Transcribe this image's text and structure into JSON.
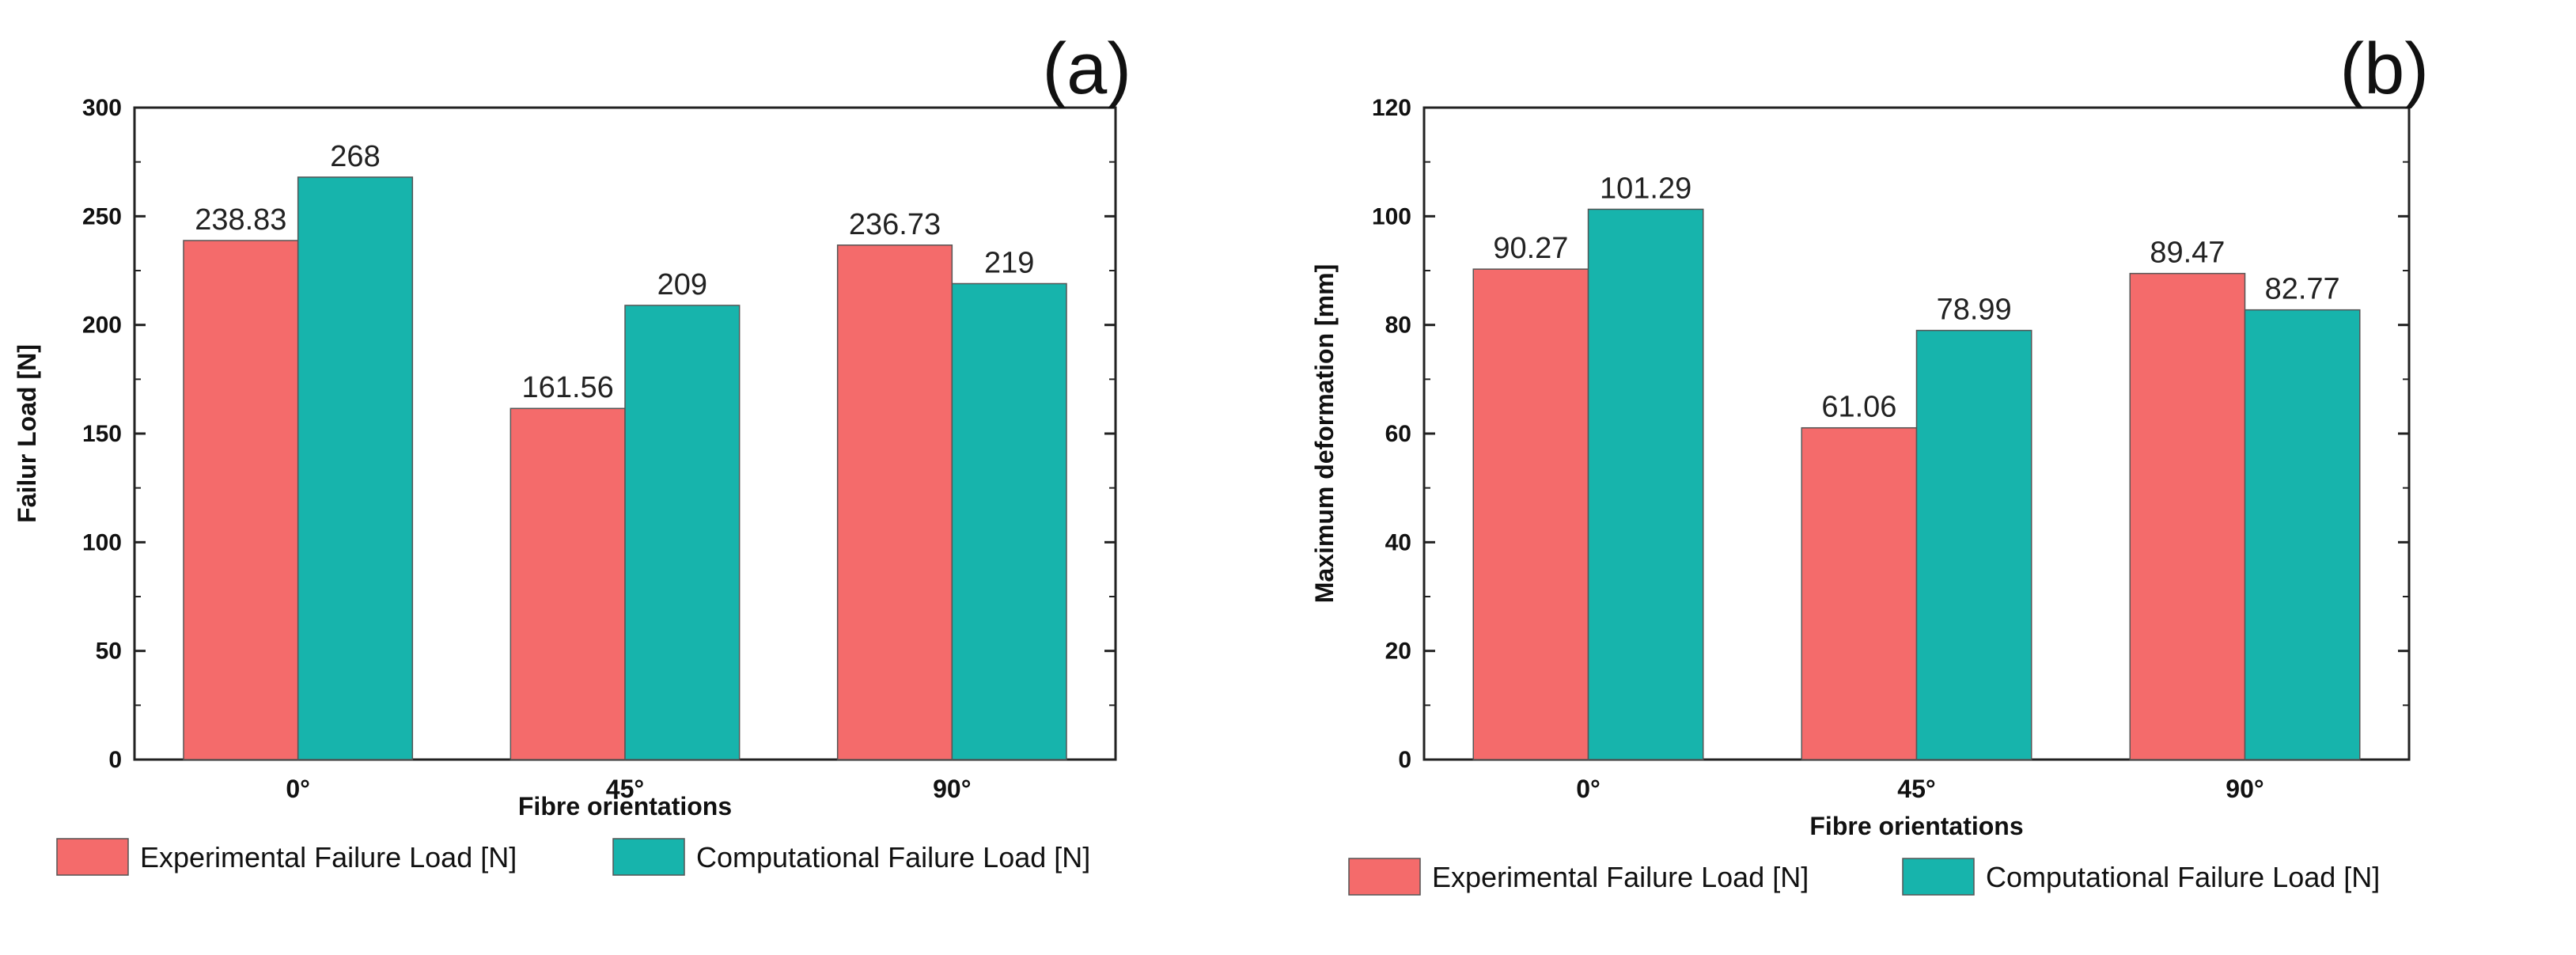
{
  "chart_data": [
    {
      "type": "bar",
      "panel_label": "(a)",
      "categories": [
        "0°",
        "45°",
        "90°"
      ],
      "series": [
        {
          "name": "Experimental Failure Load [N]",
          "values": [
            238.83,
            161.56,
            236.73
          ],
          "labels": [
            "238.83",
            "161.56",
            "236.73"
          ],
          "color": "#f46b6b"
        },
        {
          "name": "Computational Failure Load [N]",
          "values": [
            268,
            209,
            219
          ],
          "labels": [
            "268",
            "209",
            "219"
          ],
          "color": "#17b4ac"
        }
      ],
      "xlabel": "Fibre orientations",
      "ylabel": "Failur Load [N]",
      "ylim": [
        0,
        300
      ],
      "yticks": [
        0,
        50,
        100,
        150,
        200,
        250,
        300
      ],
      "legend_position": "bottom"
    },
    {
      "type": "bar",
      "panel_label": "(b)",
      "categories": [
        "0°",
        "45°",
        "90°"
      ],
      "series": [
        {
          "name": "Experimental Failure Load [N]",
          "values": [
            90.27,
            61.06,
            89.47
          ],
          "labels": [
            "90.27",
            "61.06",
            "89.47"
          ],
          "color": "#f46b6b"
        },
        {
          "name": "Computational Failure Load [N]",
          "values": [
            101.29,
            78.99,
            82.77
          ],
          "labels": [
            "101.29",
            "78.99",
            "82.77"
          ],
          "color": "#17b4ac"
        }
      ],
      "xlabel": "Fibre orientations",
      "ylabel": "Maximum deformation [mm]",
      "ylim": [
        0,
        120
      ],
      "yticks": [
        0,
        20,
        40,
        60,
        80,
        100,
        120
      ],
      "legend_position": "bottom"
    }
  ]
}
